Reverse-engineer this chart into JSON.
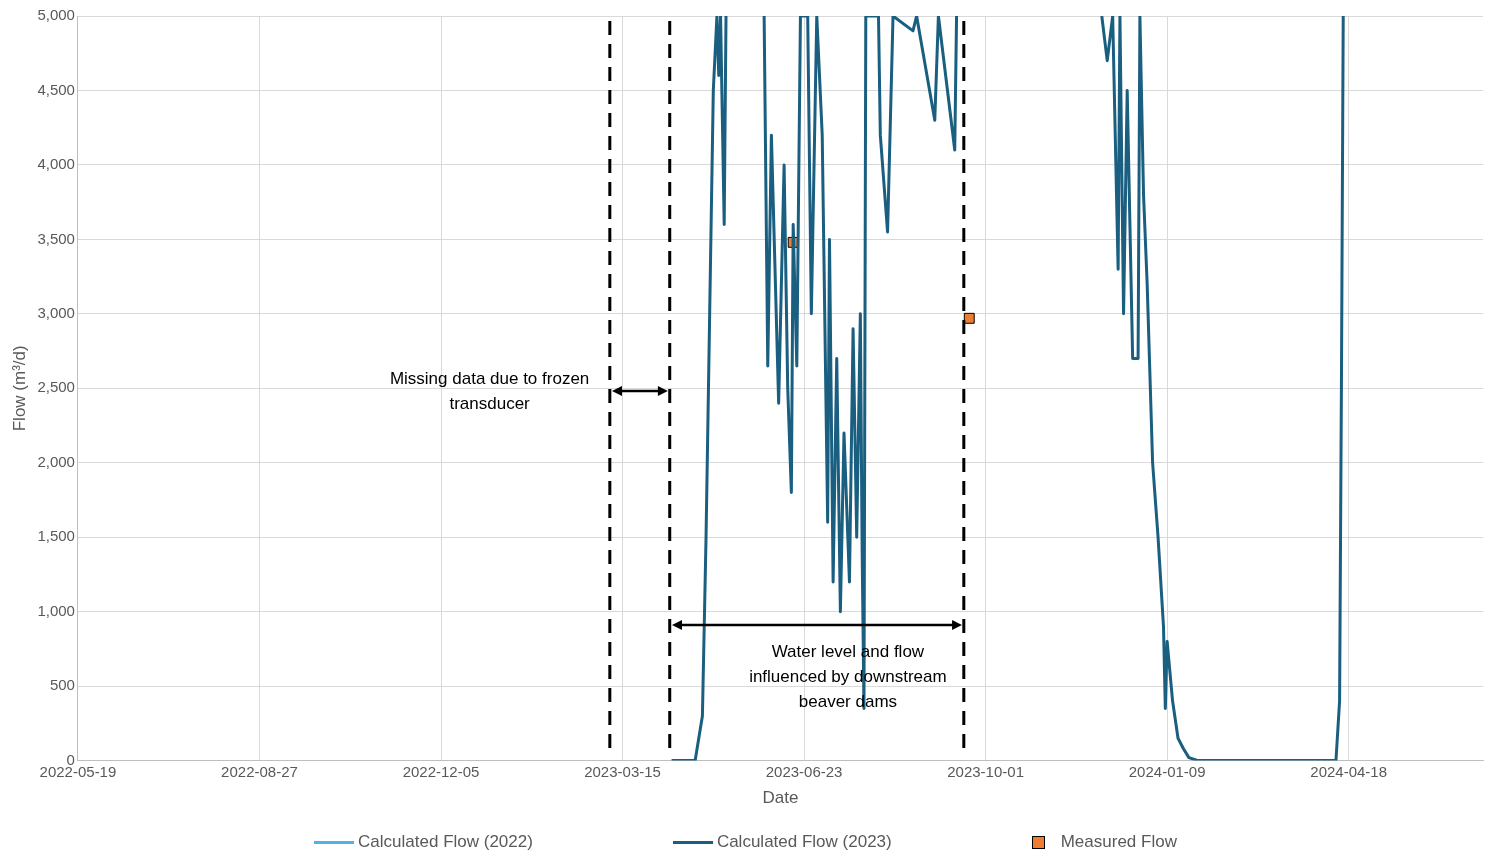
{
  "chart_data": {
    "type": "line",
    "xlabel": "Date",
    "ylabel": "Flow (m³/d)",
    "xlim": [
      "2022-05-19",
      "2024-07-01"
    ],
    "xticks": [
      "2022-05-19",
      "2022-08-27",
      "2022-12-05",
      "2023-03-15",
      "2023-06-23",
      "2023-10-01",
      "2024-01-09",
      "2024-04-18"
    ],
    "ylim": [
      0,
      5000
    ],
    "yticks": [
      0,
      500,
      {
        "value": 1000,
        "label": "1,000"
      },
      {
        "value": 1500,
        "label": "1,500"
      },
      {
        "value": 2000,
        "label": "2,000"
      },
      {
        "value": 2500,
        "label": "2,500"
      },
      {
        "value": 3000,
        "label": "3,000"
      },
      {
        "value": 3500,
        "label": "3,500"
      },
      {
        "value": 4000,
        "label": "4,000"
      },
      {
        "value": 4500,
        "label": "4,500"
      },
      {
        "value": 5000,
        "label": "5,000"
      }
    ],
    "grid": true,
    "legend": "bottom",
    "ref_lines": [
      {
        "axis": "x",
        "value": "2023-03-08",
        "color": "#000000",
        "line_style": "dashed"
      },
      {
        "axis": "x",
        "value": "2023-04-10",
        "color": "#000000",
        "line_style": "dashed"
      },
      {
        "axis": "x",
        "value": "2023-09-19",
        "color": "#000000",
        "line_style": "dashed"
      }
    ],
    "annotations": [
      "Missing data due to frozen transducer",
      "Water level and flow influenced by downstream beaver dams"
    ],
    "series": [
      {
        "name": "Calculated Flow (2022)",
        "type": "line",
        "color": "#4eb3e6"
      },
      {
        "name": "Calculated Flow (2023)",
        "color": "#1a5e80",
        "x": [
          "2023-04-11",
          "2023-04-24",
          "2023-04-28",
          "2023-04-30",
          "2023-05-02",
          "2023-05-04",
          "2023-05-06",
          "2023-05-07",
          "2023-05-08",
          "2023-05-10",
          "2023-05-11",
          "2023-05-12",
          "2023-05-31",
          "2023-06-01",
          "2023-06-03",
          "2023-06-05",
          "2023-06-09",
          "2023-06-12",
          "2023-06-14",
          "2023-06-16",
          "2023-06-17",
          "2023-06-19",
          "2023-06-21",
          "2023-06-25",
          "2023-06-27",
          "2023-06-30",
          "2023-07-03",
          "2023-07-06",
          "2023-07-07",
          "2023-07-09",
          "2023-07-11",
          "2023-07-13",
          "2023-07-15",
          "2023-07-18",
          "2023-07-20",
          "2023-07-22",
          "2023-07-24",
          "2023-07-25",
          "2023-07-26",
          "2023-07-27",
          "2023-08-03",
          "2023-08-04",
          "2023-08-08",
          "2023-08-11",
          "2023-08-22",
          "2023-08-24",
          "2023-09-03",
          "2023-09-05",
          "2023-09-14",
          "2023-09-15",
          "2023-09-16",
          "2023-12-03",
          "2023-12-04",
          "2023-12-07",
          "2023-12-10",
          "2023-12-13",
          "2023-12-14",
          "2023-12-16",
          "2023-12-18",
          "2023-12-21",
          "2023-12-24",
          "2023-12-25",
          "2023-12-27",
          "2023-12-29",
          "2024-01-01",
          "2024-01-04",
          "2024-01-07",
          "2024-01-08",
          "2024-01-09",
          "2024-01-12",
          "2024-01-15",
          "2024-01-18",
          "2024-01-21",
          "2024-01-26",
          "2024-04-11",
          "2024-04-13",
          "2024-04-14",
          "2024-04-15"
        ],
        "values": [
          0,
          0,
          300,
          1500,
          3000,
          4500,
          5000,
          4600,
          5000,
          3600,
          5000,
          null,
          null,
          5000,
          2650,
          4200,
          2400,
          4000,
          2500,
          1800,
          3600,
          2650,
          5000,
          5000,
          3000,
          5000,
          4200,
          1600,
          3500,
          1200,
          2700,
          1000,
          2200,
          1200,
          2900,
          1500,
          3000,
          1400,
          350,
          5000,
          5000,
          4200,
          3550,
          5000,
          4900,
          5000,
          4300,
          5000,
          4100,
          5000,
          null,
          null,
          5000,
          4700,
          5000,
          3300,
          5000,
          3000,
          4500,
          2700,
          2700,
          5000,
          3800,
          3200,
          2000,
          1500,
          900,
          350,
          800,
          400,
          150,
          80,
          20,
          0,
          0,
          400,
          2500,
          5000
        ]
      },
      {
        "name": "Measured Flow",
        "type": "scatter",
        "color": "#ed7d31",
        "marker": "square",
        "x": [
          "2023-06-17",
          "2023-09-22"
        ],
        "values": [
          3480,
          2970
        ]
      }
    ]
  }
}
